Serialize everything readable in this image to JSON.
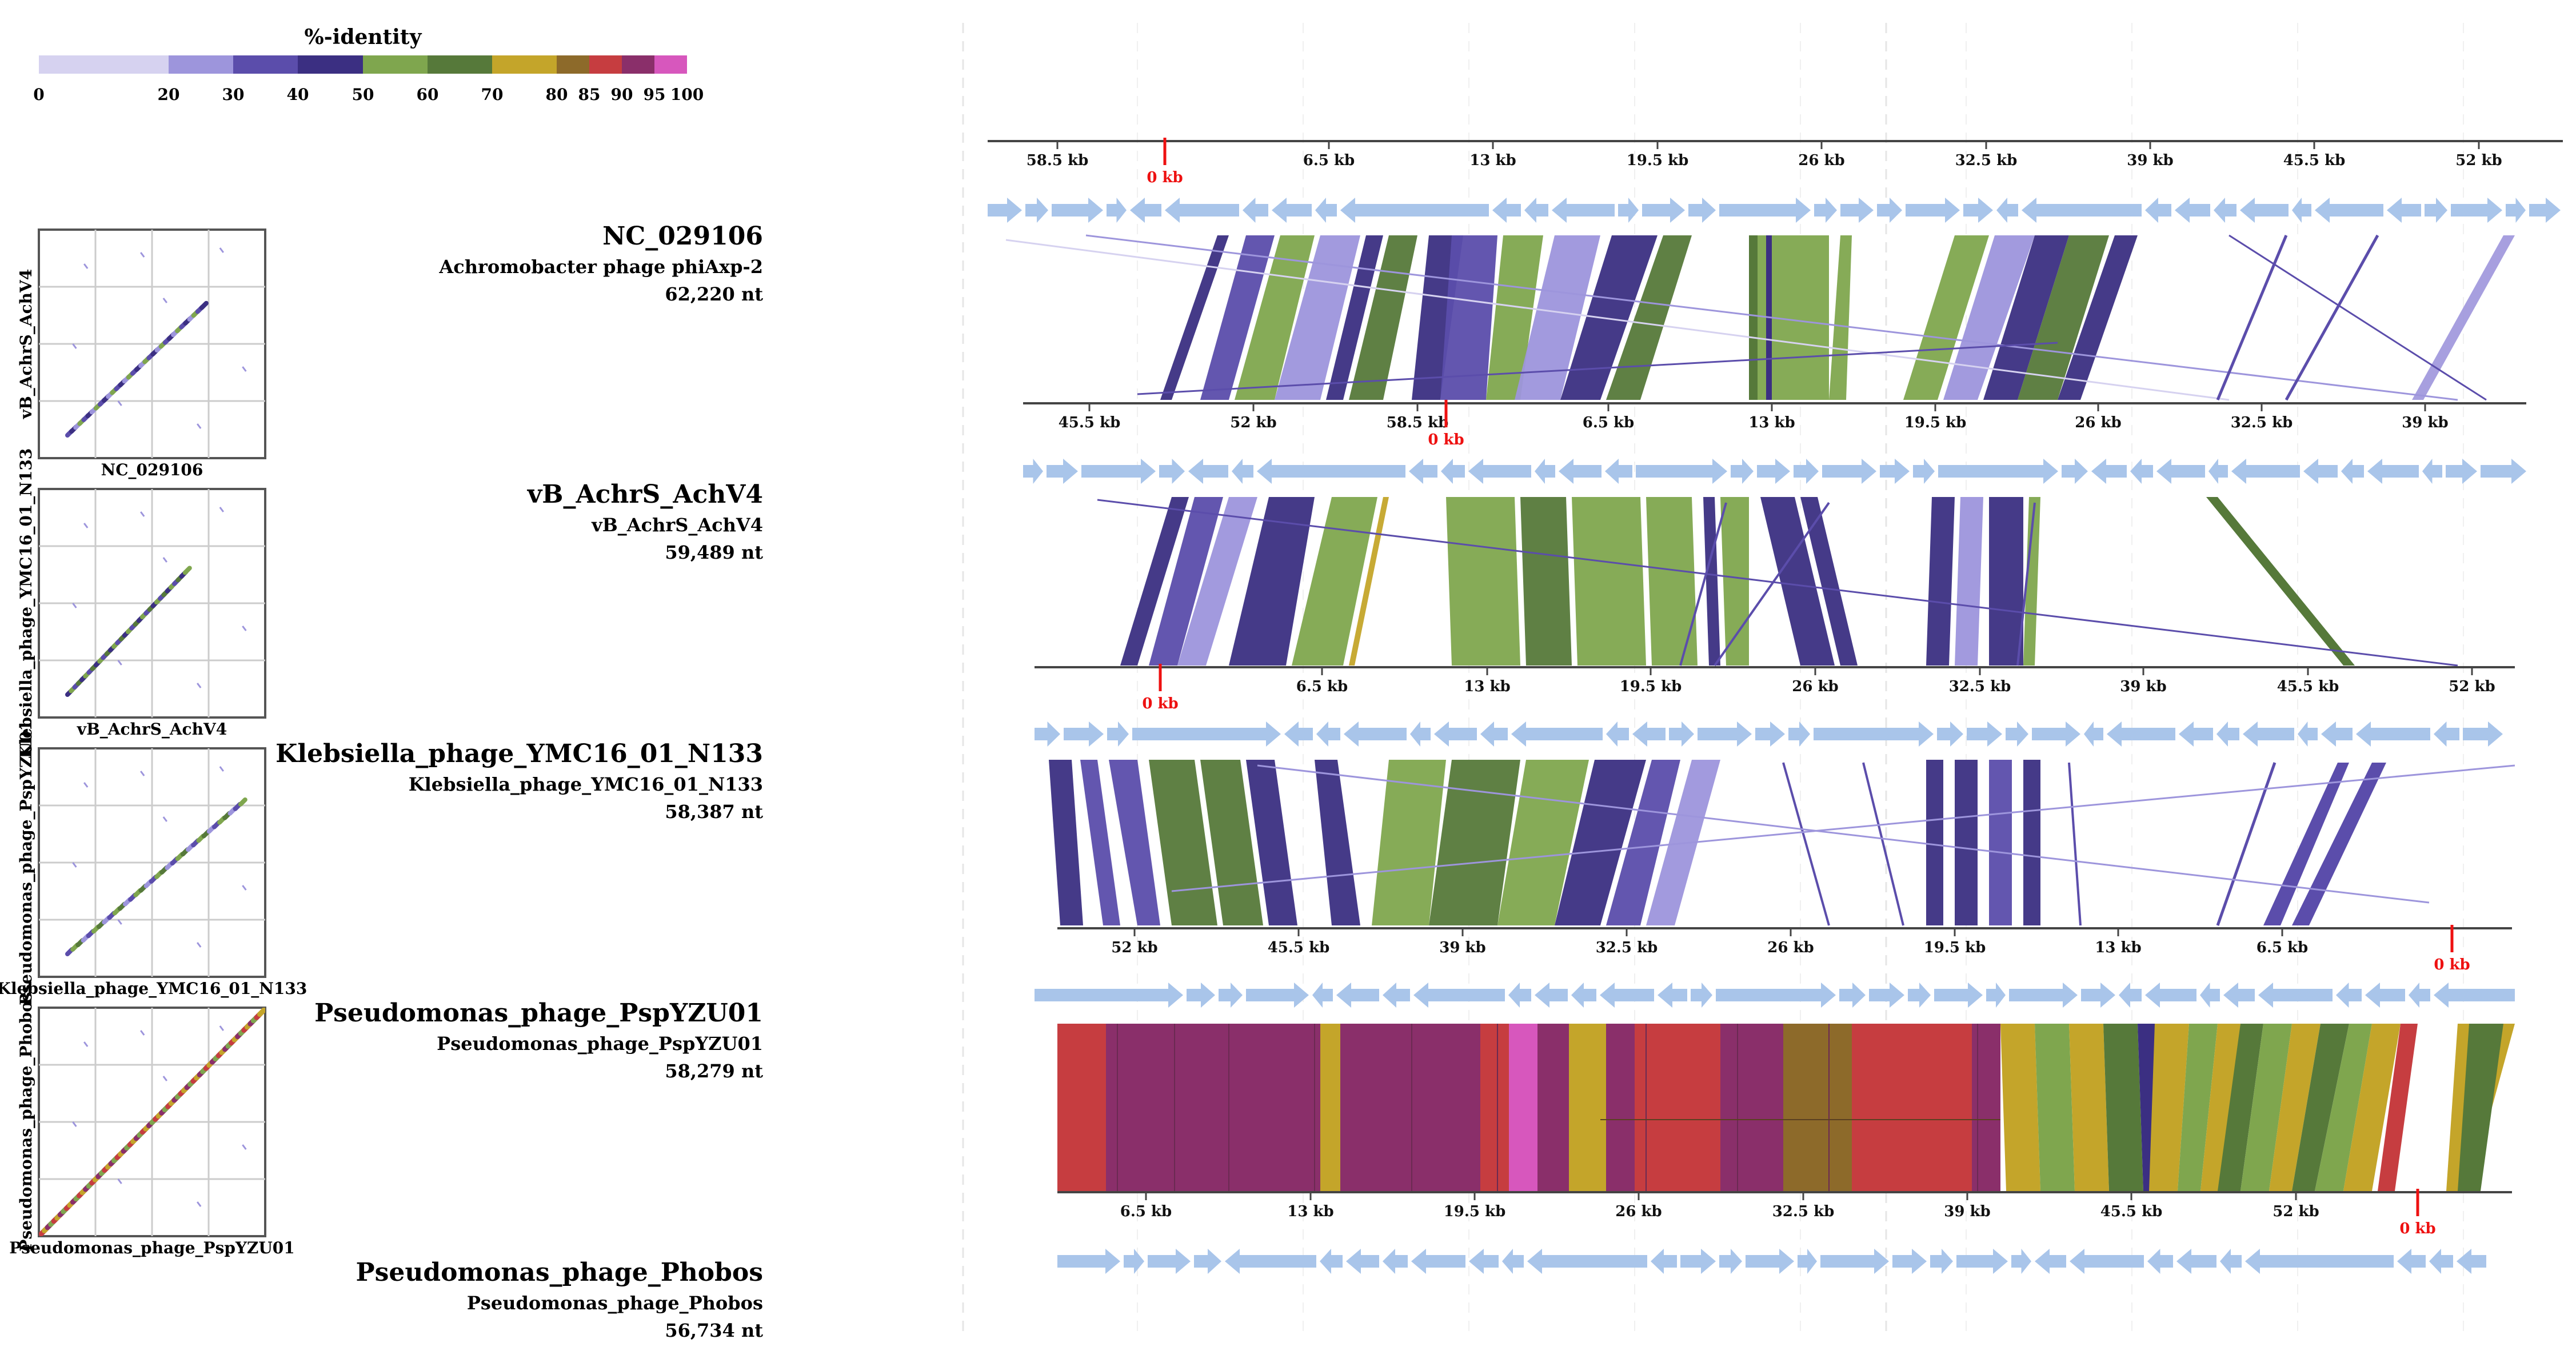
{
  "legend": {
    "title": "%-identity",
    "stops": [
      "0",
      "20",
      "30",
      "40",
      "50",
      "60",
      "70",
      "80",
      "85",
      "90",
      "95",
      "100"
    ],
    "colors": {
      "b0_20": "#d6d2f0",
      "b20_30": "#9d95dc",
      "b30_40": "#5b4dab",
      "b40_50": "#3b2f82",
      "b50_60": "#7fa64e",
      "b60_70": "#56793a",
      "b70_80": "#c4a52a",
      "b80_85": "#8d6a2a",
      "b85_90": "#c63d40",
      "b90_95": "#8a2f6a",
      "b95_100": "#d757bd"
    }
  },
  "genomes": [
    {
      "accession": "NC_029106",
      "name": "Achromobacter phage phiAxp-2",
      "length": "62,220 nt"
    },
    {
      "accession": "vB_AchrS_AchV4",
      "name": "vB_AchrS_AchV4",
      "length": "59,489 nt"
    },
    {
      "accession": "Klebsiella_phage_YMC16_01_N133",
      "name": "Klebsiella_phage_YMC16_01_N133",
      "length": "58,387 nt"
    },
    {
      "accession": "Pseudomonas_phage_PspYZU01",
      "name": "Pseudomonas_phage_PspYZU01",
      "length": "58,279 nt"
    },
    {
      "accession": "Pseudomonas_phage_Phobos",
      "name": "Pseudomonas_phage_Phobos",
      "length": "56,734 nt"
    }
  ],
  "dotplots": [
    {
      "y_label": "vB_AchrS_AchV4",
      "x_label": "NC_029106"
    },
    {
      "y_label": "Klebsiella_phage_YMC16_01_N133",
      "x_label": "vB_AchrS_AchV4"
    },
    {
      "y_label": "Pseudomonas_phage_PspYZU01",
      "x_label": "Klebsiella_phage_YMC16_01_N133"
    },
    {
      "y_label": "Pseudomonas_phage_Phobos",
      "x_label": "Pseudomonas_phage_PspYZU01"
    }
  ],
  "axes": [
    {
      "ticks": [
        "58.5 kb",
        "0 kb",
        "6.5 kb",
        "13 kb",
        "19.5 kb",
        "26 kb",
        "32.5 kb",
        "39 kb",
        "45.5 kb",
        "52 kb"
      ],
      "origin": "0 kb"
    },
    {
      "ticks": [
        "45.5 kb",
        "52 kb",
        "58.5 kb",
        "0 kb",
        "6.5 kb",
        "13 kb",
        "19.5 kb",
        "26 kb",
        "32.5 kb",
        "39 kb"
      ],
      "origin": "0 kb"
    },
    {
      "ticks": [
        "0 kb",
        "6.5 kb",
        "13 kb",
        "19.5 kb",
        "26 kb",
        "32.5 kb",
        "39 kb",
        "45.5 kb",
        "52 kb"
      ],
      "origin": "0 kb"
    },
    {
      "ticks": [
        "52 kb",
        "45.5 kb",
        "39 kb",
        "32.5 kb",
        "26 kb",
        "19.5 kb",
        "13 kb",
        "6.5 kb",
        "0 kb"
      ],
      "origin": "0 kb"
    },
    {
      "ticks": [
        "6.5 kb",
        "13 kb",
        "19.5 kb",
        "26 kb",
        "32.5 kb",
        "39 kb",
        "45.5 kb",
        "52 kb",
        "0 kb"
      ],
      "origin": "0 kb"
    }
  ]
}
